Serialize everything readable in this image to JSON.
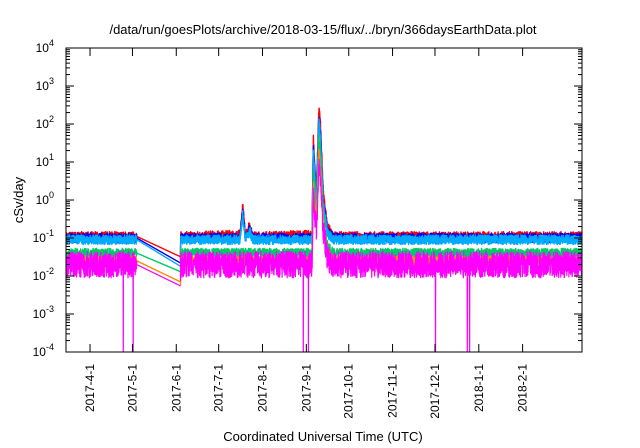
{
  "chart_data": {
    "type": "line",
    "title": "/data/run/goesPlots/archive/2018-03-15/flux/../bryn/366daysEarthData.plot",
    "xlabel": "Coordinated Universal Time (UTC)",
    "ylabel": "cSv/day",
    "xlim": [
      "2017-03-15",
      "2018-03-15"
    ],
    "ylim": [
      0.0001,
      10000
    ],
    "yscale": "log",
    "grid": false,
    "legend": "none",
    "x_ticks": [
      "2017-4-1",
      "2017-5-1",
      "2017-6-1",
      "2017-7-1",
      "2017-8-1",
      "2017-9-1",
      "2017-10-1",
      "2017-11-1",
      "2017-12-1",
      "2018-1-1",
      "2018-2-1"
    ],
    "y_ticks": [
      {
        "base": "10",
        "exp": "-4"
      },
      {
        "base": "10",
        "exp": "-3"
      },
      {
        "base": "10",
        "exp": "-2"
      },
      {
        "base": "10",
        "exp": "-1"
      },
      {
        "base": "10",
        "exp": "0"
      },
      {
        "base": "10",
        "exp": "1"
      },
      {
        "base": "10",
        "exp": "2"
      },
      {
        "base": "10",
        "exp": "3"
      },
      {
        "base": "10",
        "exp": "4"
      }
    ],
    "data_gap": [
      "2017-05-04",
      "2017-06-04"
    ],
    "series": [
      {
        "color": "#ff0000",
        "baseline": 0.11,
        "points": [
          [
            "2017-03-15",
            0.11
          ],
          [
            "2017-05-04",
            0.11
          ],
          [
            "2017-06-04",
            0.032
          ],
          [
            "2017-06-04",
            0.11
          ],
          [
            "2017-07-16",
            0.12
          ],
          [
            "2017-07-18",
            0.65
          ],
          [
            "2017-07-20",
            0.12
          ],
          [
            "2017-07-23",
            0.22
          ],
          [
            "2017-07-25",
            0.11
          ],
          [
            "2017-09-05",
            0.12
          ],
          [
            "2017-09-06",
            40
          ],
          [
            "2017-09-08",
            1.2
          ],
          [
            "2017-09-10",
            300
          ],
          [
            "2017-09-11",
            90
          ],
          [
            "2017-09-13",
            1.5
          ],
          [
            "2017-09-16",
            0.2
          ],
          [
            "2017-09-20",
            0.11
          ],
          [
            "2018-03-15",
            0.11
          ]
        ]
      },
      {
        "color": "#0000ff",
        "baseline": 0.1,
        "points": [
          [
            "2017-03-15",
            0.1
          ],
          [
            "2017-05-04",
            0.1
          ],
          [
            "2017-06-04",
            0.022
          ],
          [
            "2017-06-04",
            0.1
          ],
          [
            "2017-07-16",
            0.1
          ],
          [
            "2017-07-18",
            0.5
          ],
          [
            "2017-07-20",
            0.1
          ],
          [
            "2017-07-23",
            0.17
          ],
          [
            "2017-07-25",
            0.1
          ],
          [
            "2017-09-05",
            0.1
          ],
          [
            "2017-09-06",
            30
          ],
          [
            "2017-09-08",
            0.9
          ],
          [
            "2017-09-10",
            170
          ],
          [
            "2017-09-11",
            60
          ],
          [
            "2017-09-13",
            1.0
          ],
          [
            "2017-09-16",
            0.15
          ],
          [
            "2017-09-20",
            0.1
          ],
          [
            "2018-03-15",
            0.1
          ]
        ]
      },
      {
        "color": "#00aaff",
        "baseline": 0.09,
        "points": [
          [
            "2017-03-15",
            0.09
          ],
          [
            "2017-05-04",
            0.09
          ],
          [
            "2017-06-04",
            0.018
          ],
          [
            "2017-06-04",
            0.09
          ],
          [
            "2017-07-16",
            0.09
          ],
          [
            "2017-07-18",
            0.4
          ],
          [
            "2017-07-20",
            0.09
          ],
          [
            "2017-07-23",
            0.15
          ],
          [
            "2017-07-25",
            0.09
          ],
          [
            "2017-09-05",
            0.09
          ],
          [
            "2017-09-06",
            20
          ],
          [
            "2017-09-08",
            0.7
          ],
          [
            "2017-09-10",
            120
          ],
          [
            "2017-09-11",
            40
          ],
          [
            "2017-09-13",
            0.8
          ],
          [
            "2017-09-16",
            0.13
          ],
          [
            "2017-09-20",
            0.09
          ],
          [
            "2018-03-15",
            0.09
          ]
        ]
      },
      {
        "color": "#00cc66",
        "baseline": 0.04,
        "points": [
          [
            "2017-03-15",
            0.04
          ],
          [
            "2017-05-04",
            0.04
          ],
          [
            "2017-06-04",
            0.013
          ],
          [
            "2017-06-04",
            0.04
          ],
          [
            "2017-09-05",
            0.04
          ],
          [
            "2017-09-06",
            6
          ],
          [
            "2017-09-08",
            0.3
          ],
          [
            "2017-09-10",
            40
          ],
          [
            "2017-09-11",
            12
          ],
          [
            "2017-09-13",
            0.4
          ],
          [
            "2017-09-16",
            0.06
          ],
          [
            "2017-09-20",
            0.04
          ],
          [
            "2018-03-15",
            0.04
          ]
        ]
      },
      {
        "color": "#ff8800",
        "baseline": 0.025,
        "points": [
          [
            "2017-03-15",
            0.025
          ],
          [
            "2017-05-04",
            0.025
          ],
          [
            "2017-06-04",
            0.007
          ],
          [
            "2017-06-04",
            0.025
          ],
          [
            "2017-09-05",
            0.025
          ],
          [
            "2017-09-06",
            3
          ],
          [
            "2017-09-08",
            0.2
          ],
          [
            "2017-09-10",
            20
          ],
          [
            "2017-09-11",
            6
          ],
          [
            "2017-09-13",
            0.25
          ],
          [
            "2017-09-16",
            0.04
          ],
          [
            "2017-09-20",
            0.025
          ],
          [
            "2018-03-15",
            0.025
          ]
        ]
      },
      {
        "color": "#ff00ff",
        "baseline": 0.02,
        "points": [
          [
            "2017-03-15",
            0.02
          ],
          [
            "2017-05-04",
            0.02
          ],
          [
            "2017-06-04",
            0.0055
          ],
          [
            "2017-06-04",
            0.02
          ],
          [
            "2017-09-05",
            0.02
          ],
          [
            "2017-09-06",
            1.5
          ],
          [
            "2017-09-08",
            0.12
          ],
          [
            "2017-09-10",
            10
          ],
          [
            "2017-09-11",
            3
          ],
          [
            "2017-09-13",
            0.15
          ],
          [
            "2017-09-16",
            0.03
          ],
          [
            "2017-09-20",
            0.02
          ],
          [
            "2018-03-15",
            0.02
          ]
        ]
      }
    ]
  }
}
